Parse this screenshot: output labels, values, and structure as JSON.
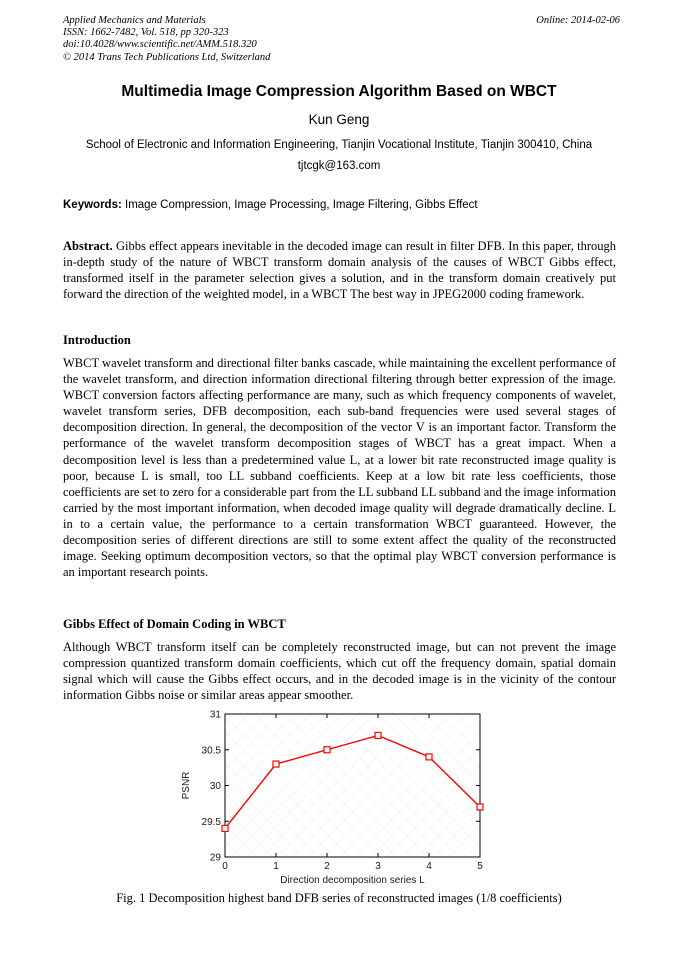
{
  "header": {
    "journal": "Applied Mechanics and Materials",
    "issn_line": "ISSN: 1662-7482, Vol. 518, pp 320-323",
    "doi_line": "doi:10.4028/www.scientific.net/AMM.518.320",
    "copyright_line": "© 2014 Trans Tech Publications Ltd, Switzerland",
    "online_date": "Online: 2014-02-06"
  },
  "article": {
    "title": "Multimedia Image Compression Algorithm Based on WBCT",
    "author": "Kun Geng",
    "affiliation": "School of Electronic and Information Engineering, Tianjin Vocational Institute, Tianjin 300410, China",
    "email": "tjtcgk@163.com",
    "keywords_label": "Keywords:",
    "keywords": "Image Compression, Image Processing, Image Filtering, Gibbs Effect",
    "abstract_label": "Abstract.",
    "abstract": "Gibbs effect appears inevitable in the decoded image can result in filter DFB. In this paper, through in-depth study of the nature of WBCT transform domain analysis of the causes of WBCT Gibbs effect, transformed itself in the parameter selection gives a solution, and in the transform domain creatively put forward the direction of the weighted model, in a WBCT The best way in JPEG2000 coding framework."
  },
  "sections": [
    {
      "heading": "Introduction",
      "body": "WBCT wavelet transform and directional filter banks cascade, while maintaining the excellent performance of the wavelet transform, and direction information directional filtering through better expression of the image. WBCT conversion factors affecting performance are many, such as which frequency components of wavelet, wavelet transform series, DFB decomposition, each sub-band frequencies were used several stages of decomposition direction. In general, the decomposition of the vector V is an important factor. Transform the performance of the wavelet transform decomposition stages of WBCT has a great impact. When a decomposition level is less than a predetermined value L, at a lower bit rate reconstructed image quality is poor, because L is small, too LL subband coefficients. Keep at a low bit rate less coefficients, those coefficients are set to zero for a considerable part from the LL subband LL subband and the image information carried by the most important information, when decoded image quality will degrade dramatically decline. L in to a certain value, the performance to a certain transformation WBCT guaranteed. However, the decomposition series of different directions are still to some extent affect the quality of the reconstructed image. Seeking optimum decomposition vectors, so that the optimal play WBCT conversion performance is an important research points."
    },
    {
      "heading": "Gibbs Effect of Domain Coding in WBCT",
      "body": "Although WBCT transform itself can be completely reconstructed image, but can not prevent the image compression quantized transform domain coefficients, which cut off the frequency domain, spatial domain signal which will cause the Gibbs effect occurs, and in the decoded image is in the vicinity of the contour information Gibbs noise or similar areas appear smoother."
    }
  ],
  "figure": {
    "caption": "Fig. 1 Decomposition highest band DFB series of reconstructed images (1/8 coefficients)"
  },
  "chart_data": {
    "type": "line",
    "x": [
      0,
      1,
      2,
      3,
      4,
      5
    ],
    "series": [
      {
        "name": "PSNR",
        "values": [
          29.4,
          30.3,
          30.5,
          30.7,
          30.4,
          29.7
        ]
      }
    ],
    "title": "",
    "xlabel": "Direction decomposition series L",
    "ylabel": "PSNR",
    "xlim": [
      0,
      5
    ],
    "ylim": [
      29,
      31
    ],
    "xticks": [
      0,
      1,
      2,
      3,
      4,
      5
    ],
    "yticks": [
      29,
      29.5,
      30,
      30.5,
      31
    ],
    "grid": false,
    "box": true,
    "legend_position": "none",
    "line_color": "#ff0000",
    "marker": "open-square",
    "marker_fill": "#ffffff"
  }
}
